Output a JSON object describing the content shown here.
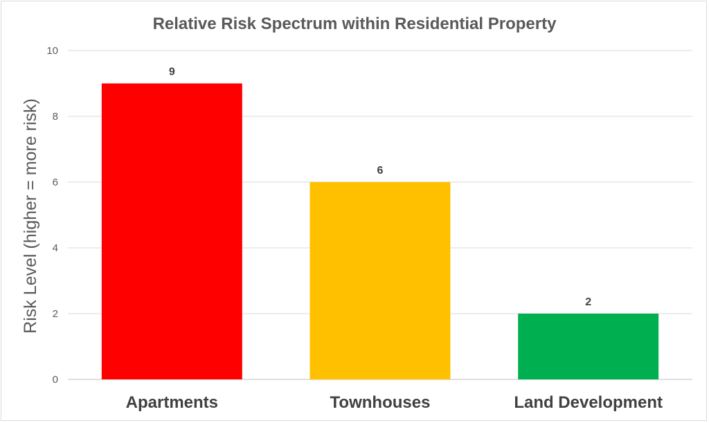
{
  "chart_data": {
    "type": "bar",
    "title": "Relative Risk Spectrum within Residential Property",
    "xlabel": "",
    "ylabel": "Risk Level (higher = more risk)",
    "categories": [
      "Apartments",
      "Townhouses",
      "Land Development"
    ],
    "values": [
      9,
      6,
      2
    ],
    "colors": [
      "#ff0000",
      "#ffc000",
      "#00b050"
    ],
    "ylim": [
      0,
      10
    ],
    "yticks": [
      0,
      2,
      4,
      6,
      8,
      10
    ],
    "grid": true,
    "legend": "none",
    "data_labels": true
  }
}
